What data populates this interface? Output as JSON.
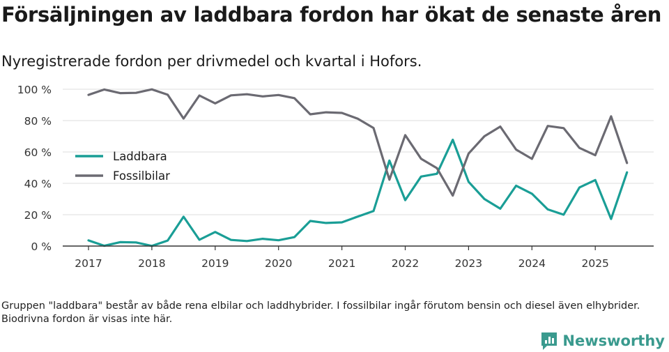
{
  "title": "Försäljningen av laddbara fordon har ökat de senaste åren",
  "subtitle": "Nyregistrerade fordon per drivmedel och kvartal i Hofors.",
  "footnote": "Gruppen \"laddbara\" består av både rena elbilar och laddhybrider. I fossilbilar ingår förutom bensin och diesel även elhybrider. Biodrivna fordon är visas inte här.",
  "brand": {
    "name": "Newsworthy"
  },
  "colors": {
    "laddbara": "#1a9e96",
    "fossil": "#6b6a72",
    "grid": "#dddddd",
    "axis": "#333333"
  },
  "chart_data": {
    "type": "line",
    "title": "Försäljningen av laddbara fordon har ökat de senaste åren",
    "xlabel": "",
    "ylabel": "",
    "ylim": [
      0,
      100
    ],
    "y_ticks": [
      0,
      20,
      40,
      60,
      80,
      100
    ],
    "y_tick_labels": [
      "0 %",
      "20 %",
      "40 %",
      "60 %",
      "80 %",
      "100 %"
    ],
    "x_ticks": [
      2017,
      2018,
      2019,
      2020,
      2021,
      2022,
      2023,
      2024,
      2025
    ],
    "x_tick_labels": [
      "2017",
      "2018",
      "2019",
      "2020",
      "2021",
      "2022",
      "2023",
      "2024",
      "2025"
    ],
    "legend_position": "left-middle",
    "x": [
      2017.0,
      2017.25,
      2017.5,
      2017.75,
      2018.0,
      2018.25,
      2018.5,
      2018.75,
      2019.0,
      2019.25,
      2019.5,
      2019.75,
      2020.0,
      2020.25,
      2020.5,
      2020.75,
      2021.0,
      2021.25,
      2021.5,
      2021.75,
      2022.0,
      2022.25,
      2022.5,
      2022.75,
      2023.0,
      2023.25,
      2023.5,
      2023.75,
      2024.0,
      2024.25,
      2024.5,
      2024.75,
      2025.0,
      2025.25,
      2025.5
    ],
    "series": [
      {
        "name": "Laddbara",
        "color": "#1a9e96",
        "values": [
          3.6,
          0.2,
          2.5,
          2.3,
          0.1,
          3.5,
          18.7,
          4.0,
          9.0,
          3.9,
          3.2,
          4.6,
          3.7,
          5.7,
          16.0,
          14.7,
          15.1,
          18.8,
          22.3,
          54.5,
          29.3,
          44.3,
          46.1,
          67.8,
          41.0,
          30.0,
          23.8,
          38.5,
          33.4,
          23.4,
          20.0,
          37.4,
          42.1,
          17.3,
          47.0
        ]
      },
      {
        "name": "Fossilbilar",
        "color": "#6b6a72",
        "values": [
          96.4,
          99.8,
          97.5,
          97.7,
          99.9,
          96.5,
          81.3,
          96.0,
          91.0,
          96.1,
          96.8,
          95.4,
          96.3,
          94.3,
          84.0,
          85.3,
          84.9,
          81.2,
          75.3,
          42.3,
          70.7,
          55.7,
          49.7,
          32.2,
          59.0,
          70.0,
          76.2,
          61.5,
          55.6,
          76.6,
          75.2,
          62.6,
          57.9,
          82.7,
          53.0
        ]
      }
    ]
  }
}
